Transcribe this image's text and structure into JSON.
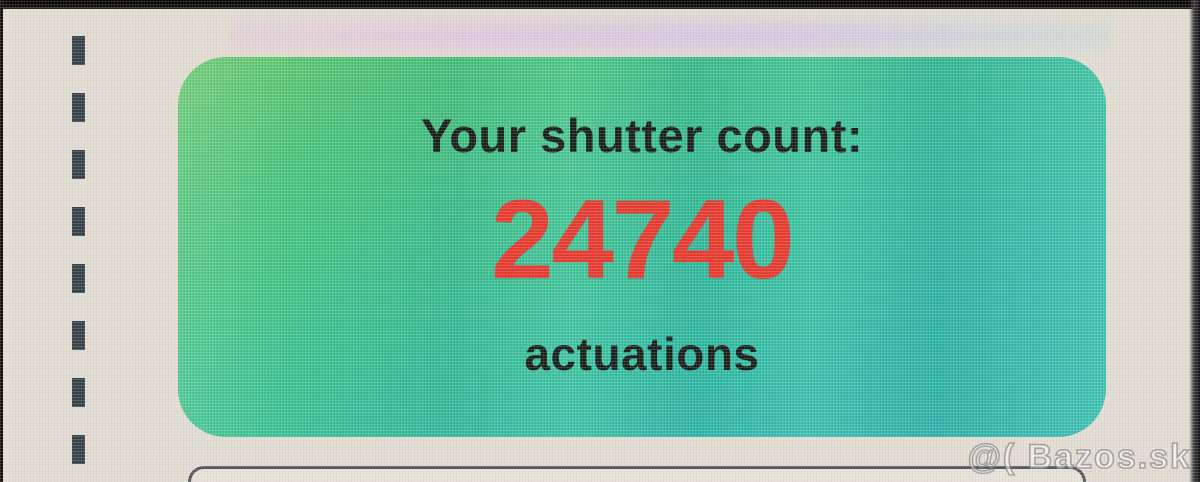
{
  "result_card": {
    "title": "Your shutter count:",
    "count": "24740",
    "unit": "actuations",
    "count_color": "#e6392f",
    "text_color": "#171d18",
    "gradient_start": "#63cb68",
    "gradient_end": "#2cbfae"
  },
  "watermark": {
    "text": "@( Bazos.sk"
  }
}
